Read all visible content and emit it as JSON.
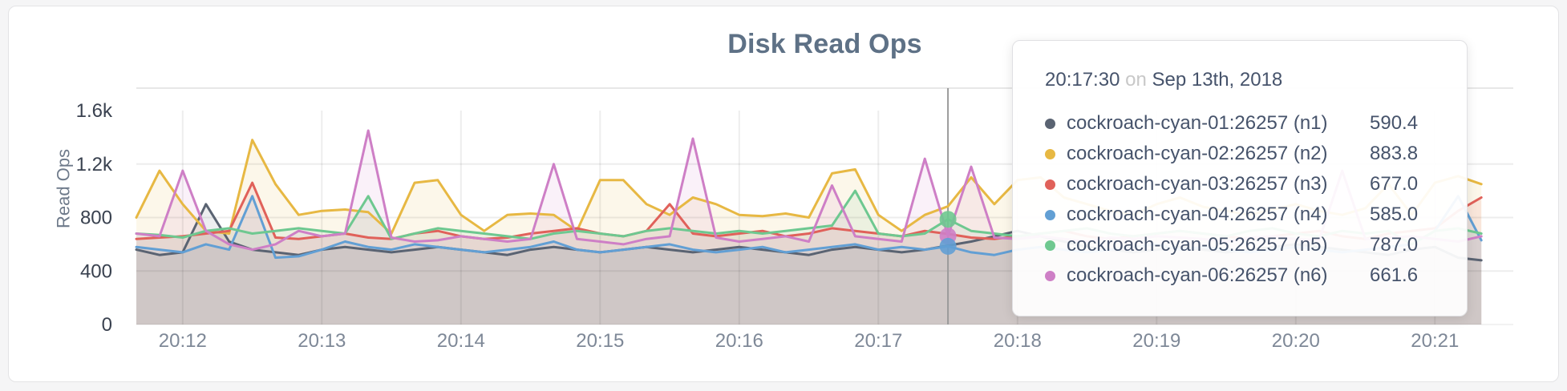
{
  "chart_data": {
    "type": "line",
    "title": "Disk Read Ops",
    "ylabel": "Read Ops",
    "x_start": "20:11:40",
    "x_step_seconds": 10,
    "x_ticks": [
      "20:12",
      "20:13",
      "20:14",
      "20:15",
      "20:16",
      "20:17",
      "20:18",
      "20:19",
      "20:20",
      "20:21"
    ],
    "y_ticks": [
      {
        "label": "0",
        "value": 0,
        "grid": false
      },
      {
        "label": "400",
        "value": 400,
        "grid": true
      },
      {
        "label": "800",
        "value": 800,
        "grid": true
      },
      {
        "label": "1.2k",
        "value": 1200,
        "grid": true
      },
      {
        "label": "1.6k",
        "value": 1600,
        "grid": false
      }
    ],
    "ylim": [
      0,
      1600
    ],
    "grid": true,
    "legend_position": "tooltip",
    "series": [
      {
        "name": "cockroach-cyan-01:26257 (n1)",
        "color": "#5a6372",
        "values": [
          560,
          520,
          540,
          900,
          620,
          560,
          540,
          520,
          560,
          580,
          560,
          540,
          560,
          580,
          560,
          540,
          520,
          560,
          580,
          560,
          540,
          560,
          580,
          560,
          540,
          560,
          580,
          560,
          540,
          520,
          560,
          580,
          560,
          540,
          560,
          590.4,
          620,
          660,
          700,
          660,
          620,
          580,
          560,
          540,
          560,
          580,
          560,
          540,
          560,
          580,
          600,
          580,
          560,
          540,
          520,
          560,
          580,
          500,
          480
        ]
      },
      {
        "name": "cockroach-cyan-02:26257 (n2)",
        "color": "#e7b843",
        "values": [
          800,
          1150,
          900,
          700,
          680,
          1380,
          1050,
          820,
          850,
          860,
          840,
          680,
          1060,
          1080,
          820,
          700,
          820,
          830,
          820,
          700,
          1080,
          1080,
          900,
          820,
          950,
          900,
          820,
          810,
          830,
          800,
          1130,
          1160,
          820,
          700,
          820,
          883.8,
          1100,
          900,
          1080,
          1100,
          950,
          900,
          850,
          820,
          900,
          950,
          880,
          850,
          820,
          860,
          900,
          850,
          820,
          870,
          1050,
          820,
          1060,
          1110,
          1050
        ]
      },
      {
        "name": "cockroach-cyan-03:26257 (n3)",
        "color": "#e0615a",
        "values": [
          640,
          650,
          660,
          680,
          700,
          1060,
          650,
          640,
          660,
          680,
          650,
          640,
          680,
          700,
          660,
          640,
          650,
          680,
          700,
          720,
          680,
          660,
          700,
          900,
          680,
          660,
          680,
          700,
          660,
          680,
          720,
          700,
          680,
          660,
          700,
          677,
          650,
          640,
          660,
          680,
          700,
          660,
          640,
          660,
          680,
          700,
          680,
          660,
          640,
          660,
          680,
          700,
          660,
          640,
          680,
          700,
          720,
          850,
          950
        ]
      },
      {
        "name": "cockroach-cyan-04:26257 (n4)",
        "color": "#629fd4",
        "values": [
          580,
          560,
          540,
          600,
          560,
          960,
          500,
          510,
          560,
          620,
          580,
          560,
          600,
          580,
          560,
          540,
          560,
          580,
          620,
          560,
          540,
          560,
          580,
          600,
          560,
          540,
          560,
          580,
          540,
          560,
          580,
          600,
          560,
          580,
          560,
          585,
          540,
          520,
          560,
          580,
          560,
          540,
          560,
          580,
          600,
          560,
          580,
          560,
          540,
          560,
          580,
          560,
          540,
          560,
          580,
          600,
          700,
          960,
          630
        ]
      },
      {
        "name": "cockroach-cyan-05:26257 (n5)",
        "color": "#6ec890",
        "values": [
          680,
          670,
          650,
          700,
          720,
          680,
          700,
          720,
          700,
          680,
          960,
          640,
          680,
          720,
          700,
          680,
          660,
          640,
          680,
          700,
          680,
          660,
          700,
          720,
          700,
          680,
          700,
          680,
          700,
          720,
          740,
          1000,
          680,
          660,
          680,
          787,
          700,
          680,
          660,
          680,
          700,
          720,
          680,
          660,
          680,
          700,
          680,
          660,
          700,
          720,
          680,
          660,
          700,
          680,
          700,
          600,
          700,
          720,
          680
        ]
      },
      {
        "name": "cockroach-cyan-06:26257 (n6)",
        "color": "#ce7fc6",
        "values": [
          680,
          660,
          1150,
          700,
          600,
          560,
          600,
          700,
          660,
          680,
          1450,
          650,
          620,
          630,
          660,
          640,
          620,
          640,
          1200,
          640,
          620,
          600,
          640,
          660,
          1390,
          650,
          620,
          640,
          660,
          620,
          1040,
          660,
          640,
          620,
          1240,
          661.6,
          1180,
          650,
          640,
          660,
          640,
          620,
          650,
          640,
          660,
          650,
          640,
          620,
          650,
          660,
          640,
          630,
          1150,
          640,
          650,
          660,
          640,
          620,
          660
        ]
      }
    ]
  },
  "hover": {
    "index": 35,
    "dot_series_indexes": [
      4,
      5,
      3
    ],
    "line_color": "#9b9b9b"
  },
  "tooltip": {
    "time": "20:17:30",
    "on": "on",
    "date": "Sep 13th, 2018",
    "rows": [
      {
        "label": "cockroach-cyan-01:26257 (n1)",
        "value": "590.4"
      },
      {
        "label": "cockroach-cyan-02:26257 (n2)",
        "value": "883.8"
      },
      {
        "label": "cockroach-cyan-03:26257 (n3)",
        "value": "677.0"
      },
      {
        "label": "cockroach-cyan-04:26257 (n4)",
        "value": "585.0"
      },
      {
        "label": "cockroach-cyan-05:26257 (n5)",
        "value": "787.0"
      },
      {
        "label": "cockroach-cyan-06:26257 (n6)",
        "value": "661.6"
      }
    ]
  },
  "colors": {
    "grid": "rgba(0,0,0,0.07)",
    "area_opacity": 0.11,
    "y_tick_text": "#39414f",
    "x_tick_text": "#7e8897"
  }
}
